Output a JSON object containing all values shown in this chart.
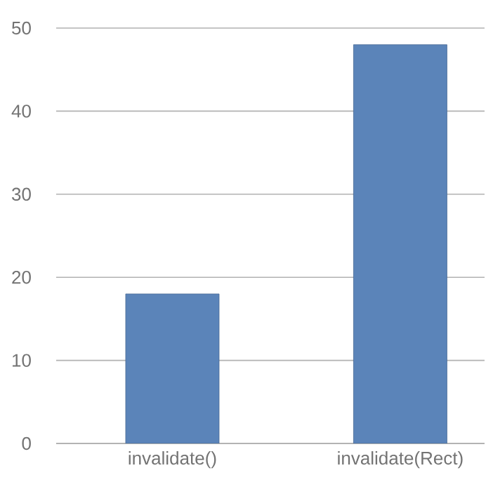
{
  "chart_data": {
    "type": "bar",
    "categories": [
      "invalidate()",
      "invalidate(Rect)"
    ],
    "values": [
      18,
      48
    ],
    "color": "#5b84b9",
    "ylim": [
      0,
      50
    ],
    "yticks": [
      0,
      10,
      20,
      30,
      40,
      50
    ],
    "grid": "y"
  }
}
